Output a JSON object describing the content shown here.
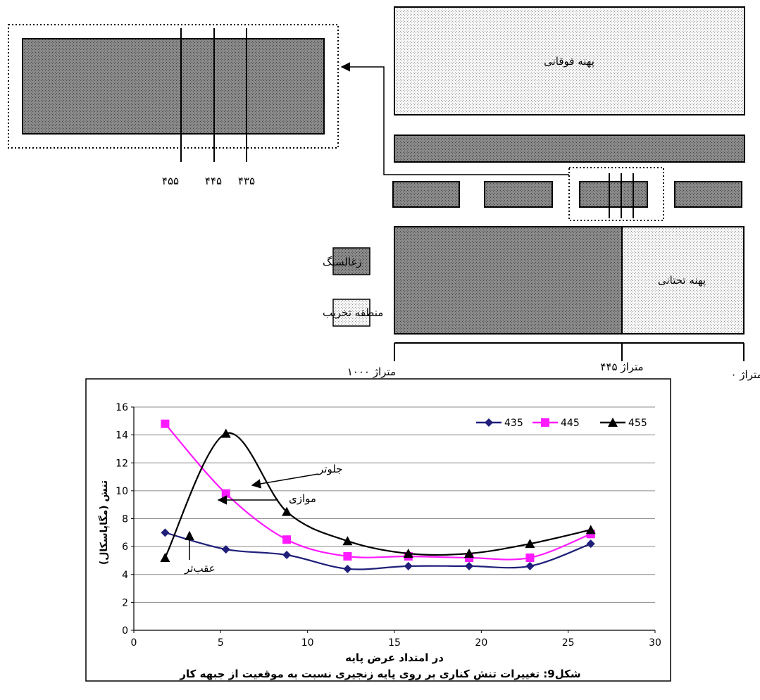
{
  "schematic": {
    "upper_panel_label": "پهنه فوقانی",
    "lower_panel_label": "پهنه تحتانی",
    "legend": {
      "coal_label": "زغالسنگ",
      "damage_zone_label": "منطقه تخریب"
    },
    "section_lines": [
      "۴۵۵",
      "۴۴۵",
      "۴۳۵"
    ],
    "chainage": {
      "left": "متراژ ۱۰۰۰",
      "middle": "متراژ ۴۴۵",
      "right": "متراژ ۰"
    }
  },
  "annotations": {
    "ahead": "جلوتر",
    "parallel": "موازی",
    "behind": "عقب‌تر"
  },
  "caption": "شکل9: تغییرات تنش کناری بر روی پایه زنجیری نسبت به موقعیت از جبهه کار",
  "colors": {
    "series_435": "#1f1f7a",
    "series_445": "#ff1aff",
    "series_455": "#000000",
    "coal_fill": "#6e6e6e",
    "damage_fill": "#f2f2f2"
  },
  "chart_data": {
    "type": "line",
    "title": "",
    "xlabel": "در امتداد عرض پایه",
    "ylabel": "تنش (مگاپاسکال)",
    "xlim": [
      0,
      30
    ],
    "ylim": [
      0,
      16
    ],
    "xticks": [
      0,
      5,
      10,
      15,
      20,
      25,
      30
    ],
    "yticks": [
      0,
      2,
      4,
      6,
      8,
      10,
      12,
      14,
      16
    ],
    "grid": "horizontal",
    "legend_position": "top-right",
    "x": [
      1.8,
      5.3,
      8.8,
      12.3,
      15.8,
      19.3,
      22.8,
      26.3
    ],
    "series": [
      {
        "name": "435",
        "marker": "diamond",
        "values": [
          7.0,
          5.8,
          5.4,
          4.4,
          4.6,
          4.6,
          4.6,
          6.2
        ]
      },
      {
        "name": "445",
        "marker": "square",
        "values": [
          14.8,
          9.8,
          6.5,
          5.3,
          5.3,
          5.2,
          5.2,
          6.9
        ]
      },
      {
        "name": "455",
        "marker": "triangle",
        "values": [
          5.2,
          14.1,
          8.5,
          6.4,
          5.5,
          5.5,
          6.2,
          7.2
        ]
      }
    ]
  }
}
